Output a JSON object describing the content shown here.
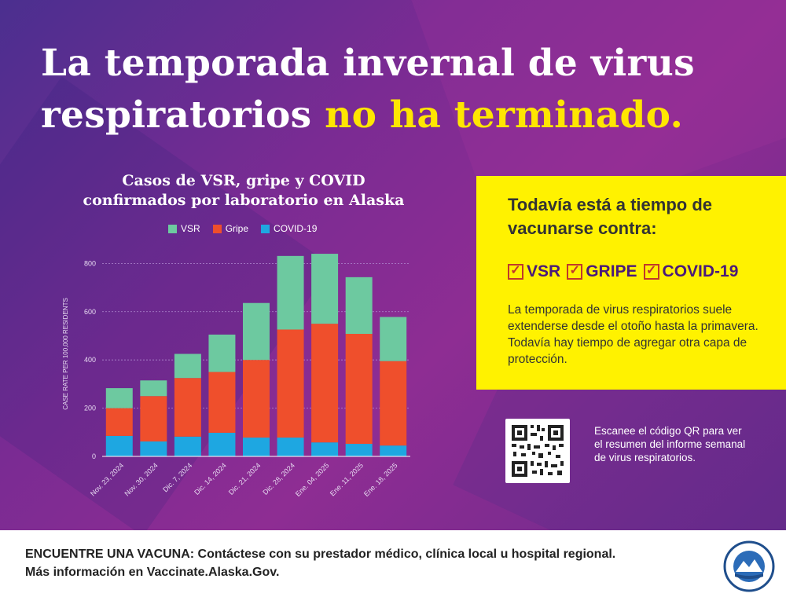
{
  "headline": {
    "line1": "La temporada invernal de virus",
    "line2_white": "respiratorios ",
    "line2_yellow": "no ha terminado."
  },
  "chart_data": {
    "type": "bar",
    "stacked": true,
    "title_line1": "Casos de VSR, gripe y COVID",
    "title_line2": "confirmados por laboratorio en Alaska",
    "ylabel": "CASE RATE PER 100,000 RESIDENTS",
    "ylim": [
      0,
      850
    ],
    "yticks": [
      0,
      200,
      400,
      600,
      800
    ],
    "categories": [
      "Nov. 23, 2024",
      "Nov. 30, 2024",
      "Dic. 7, 2024",
      "Dic. 14, 2024",
      "Dic. 21, 2024",
      "Dic. 28, 2024",
      "Ene. 04, 2025",
      "Ene. 11, 2025",
      "Ene. 18, 2025"
    ],
    "series": [
      {
        "name": "COVID-19",
        "color": "#1ea7e1",
        "values": [
          85,
          62,
          82,
          98,
          78,
          78,
          58,
          52,
          45
        ]
      },
      {
        "name": "Gripe",
        "color": "#ef4f2c",
        "values": [
          115,
          188,
          243,
          252,
          322,
          448,
          492,
          456,
          350
        ]
      },
      {
        "name": "VSR",
        "color": "#6dc9a0",
        "values": [
          83,
          65,
          100,
          155,
          236,
          305,
          290,
          235,
          183
        ]
      }
    ],
    "legend_order": [
      "VSR",
      "Gripe",
      "COVID-19"
    ],
    "legend_position": "top"
  },
  "panel": {
    "title": "Todavía está a tiempo de vacunarse contra:",
    "checks": [
      "VSR",
      "GRIPE",
      "COVID-19"
    ],
    "body": "La temporada de virus respiratorios suele extenderse desde el otoño hasta la primavera. Todavía hay tiempo de agregar otra capa de protección."
  },
  "qr": {
    "text": "Escanee el código QR para ver el resumen del informe semanal de virus respiratorios."
  },
  "footer": {
    "line1": "ENCUENTRE UNA VACUNA: Contáctese con su prestador médico, clínica local u hospital regional.",
    "line2": "Más información en Vaccinate.Alaska.Gov."
  },
  "seal": {
    "top_text": "STATE OF ALASKA",
    "bottom_text": "DEPARTMENT OF HEALTH"
  },
  "colors": {
    "accent_yellow": "#ffe600",
    "panel_yellow": "#fff200",
    "purple": "#7a2b93"
  }
}
